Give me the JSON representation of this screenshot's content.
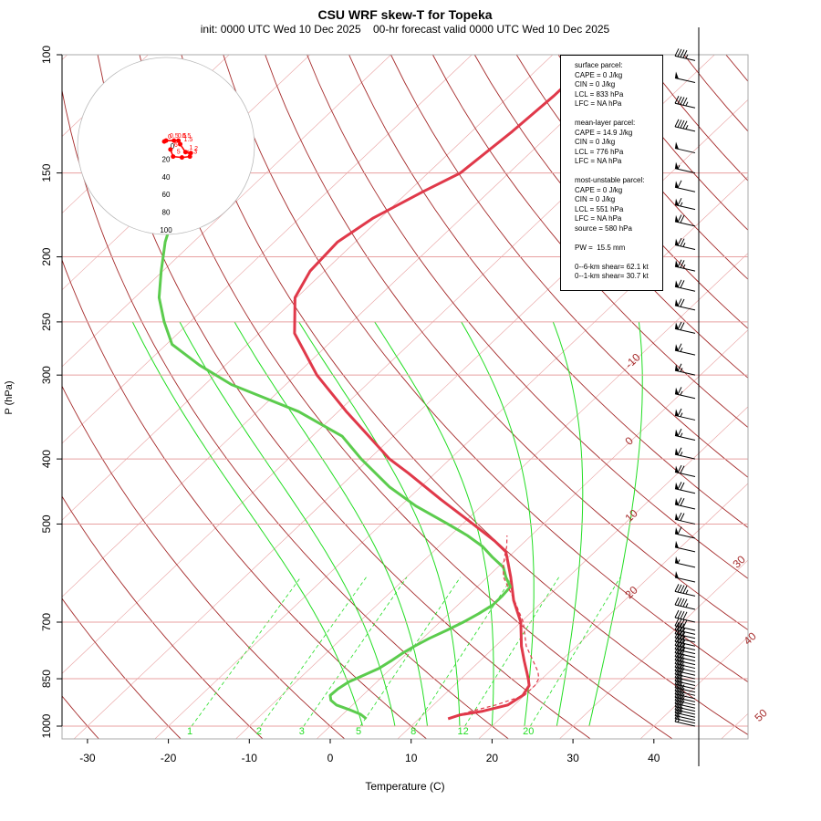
{
  "title": "CSU WRF skew-T for Topeka",
  "subtitle": "init: 0000 UTC Wed 10 Dec 2025    00-hr forecast valid 0000 UTC Wed 10 Dec 2025",
  "info_box": {
    "surface": [
      "surface parcel:",
      "CAPE = 0 J/kg",
      "CIN = 0 J/kg",
      "LCL = 833 hPa",
      "LFC = NA hPa"
    ],
    "mean_layer": [
      "mean-layer parcel:",
      "CAPE = 14.9 J/kg",
      "CIN = 0 J/kg",
      "LCL = 776 hPa",
      "LFC = NA hPa"
    ],
    "most_unstable": [
      "most-unstable parcel:",
      "CAPE = 0 J/kg",
      "CIN = 0 J/kg",
      "LCL = 551 hPa",
      "LFC = NA hPa",
      "source = 580 hPa"
    ],
    "pw": "PW =  15.5 mm",
    "shear": [
      "0--6-km shear= 62.1 kt",
      "0--1-km shear= 30.7 kt"
    ]
  },
  "colors": {
    "temperature": "#e0394a",
    "dewpoint": "#5ccc4e",
    "dry_adiabat": "#a52a2a",
    "isotherm_grid": "#e8a0a0",
    "moist_adiabat": "#22dd22",
    "mixing_ratio": "#22dd22",
    "hodograph": "#ff0000",
    "wind_barb": "#000000"
  },
  "chart_data": {
    "type": "line",
    "xlabel": "Temperature (C)",
    "ylabel": "P (hPa)",
    "xlim": [
      -33,
      52
    ],
    "ylim": [
      1000,
      100
    ],
    "y_scale": "log",
    "x_ticks": [
      -30,
      -20,
      -10,
      0,
      10,
      20,
      30,
      40
    ],
    "y_ticks": [
      100,
      150,
      200,
      250,
      300,
      400,
      500,
      700,
      850,
      1000
    ],
    "skew_deg_per_log_p": 38,
    "isotherm_labels": [
      -10,
      0,
      10,
      20,
      30,
      40,
      50
    ],
    "mixing_ratio_labels": [
      1,
      2,
      3,
      5,
      8,
      12,
      20
    ],
    "series": [
      {
        "key": "temperature",
        "pressure": [
          975,
          962,
          950,
          930,
          900,
          870,
          850,
          830,
          800,
          760,
          700,
          650,
          600,
          570,
          550,
          530,
          500,
          460,
          420,
          400,
          370,
          340,
          300,
          260,
          230,
          210,
          190,
          175,
          160,
          150,
          130,
          115,
          108
        ],
        "temperature": [
          13.6,
          14.6,
          16.9,
          19.2,
          19.8,
          19.3,
          18.3,
          17.2,
          15.5,
          13.2,
          10.0,
          6.3,
          2.9,
          0.6,
          -1.0,
          -3.8,
          -8.7,
          -15.8,
          -23.3,
          -27.5,
          -33.0,
          -39.0,
          -47.4,
          -55.6,
          -60.2,
          -61.8,
          -62.2,
          -60.9,
          -58.2,
          -56.0,
          -55.0,
          -54.5,
          -54.5
        ]
      },
      {
        "key": "dewpoint",
        "pressure": [
          975,
          960,
          945,
          930,
          915,
          900,
          880,
          860,
          840,
          820,
          800,
          780,
          760,
          740,
          720,
          700,
          680,
          660,
          640,
          620,
          600,
          580,
          560,
          540,
          520,
          500,
          470,
          440,
          400,
          370,
          340,
          310,
          290,
          270,
          250,
          230,
          210,
          190,
          175
        ],
        "temperature": [
          3.5,
          2.2,
          0.2,
          -2.0,
          -3.3,
          -4.0,
          -3.9,
          -3.5,
          -2.5,
          -1.5,
          -1.0,
          -0.6,
          0.0,
          0.8,
          1.9,
          2.9,
          3.7,
          4.3,
          4.3,
          4.1,
          2.3,
          0.7,
          -2.0,
          -4.6,
          -7.9,
          -11.8,
          -18.1,
          -23.9,
          -31.0,
          -36.3,
          -44.9,
          -56.7,
          -63.2,
          -69.3,
          -73.2,
          -77.0,
          -80.2,
          -83.5,
          -85.7
        ]
      }
    ],
    "parcel_trace": {
      "pressure": [
        965,
        950,
        930,
        900,
        870,
        850,
        830,
        800,
        760,
        700,
        650,
        600,
        580,
        560,
        540,
        520
      ],
      "temperature": [
        14.2,
        15.5,
        17.7,
        20.0,
        20.0,
        19.6,
        18.6,
        16.6,
        13.8,
        10.3,
        6.4,
        2.0,
        0.7,
        -0.5,
        -1.6,
        -3.0
      ]
    },
    "hodograph": {
      "rings_kt": [
        20,
        40,
        60,
        80,
        100
      ],
      "points_uv": [
        [
          5,
          -4
        ],
        [
          8,
          -12
        ],
        [
          18,
          -13
        ],
        [
          27,
          -12
        ],
        [
          28,
          -8
        ],
        [
          22,
          -7
        ],
        [
          16,
          2
        ],
        [
          14,
          6
        ],
        [
          9,
          6
        ],
        [
          0,
          6
        ],
        [
          -2,
          5
        ]
      ],
      "point_labels": [
        "6",
        "5",
        "4",
        "3",
        "2",
        "1",
        "1.5",
        "0.5",
        "0.5",
        "0.5",
        "0"
      ]
    },
    "wind_barbs": {
      "pressure": [
        1000,
        990,
        980,
        970,
        960,
        950,
        940,
        930,
        920,
        910,
        900,
        890,
        880,
        870,
        860,
        850,
        840,
        830,
        820,
        810,
        800,
        790,
        780,
        770,
        760,
        750,
        740,
        730,
        720,
        700,
        670,
        640,
        610,
        580,
        550,
        525,
        500,
        475,
        450,
        425,
        400,
        375,
        350,
        325,
        300,
        280,
        260,
        240,
        225,
        210,
        195,
        180,
        170,
        160,
        150,
        140,
        130,
        120,
        110,
        102
      ],
      "speed_kt": [
        15,
        15,
        20,
        25,
        25,
        30,
        30,
        30,
        30,
        30,
        30,
        25,
        25,
        25,
        25,
        30,
        30,
        30,
        30,
        30,
        30,
        30,
        35,
        35,
        35,
        35,
        35,
        35,
        40,
        40,
        45,
        45,
        50,
        55,
        50,
        60,
        70,
        70,
        70,
        70,
        65,
        65,
        65,
        65,
        65,
        65,
        70,
        70,
        70,
        75,
        75,
        70,
        65,
        60,
        55,
        50,
        45,
        45,
        50,
        45
      ]
    }
  }
}
